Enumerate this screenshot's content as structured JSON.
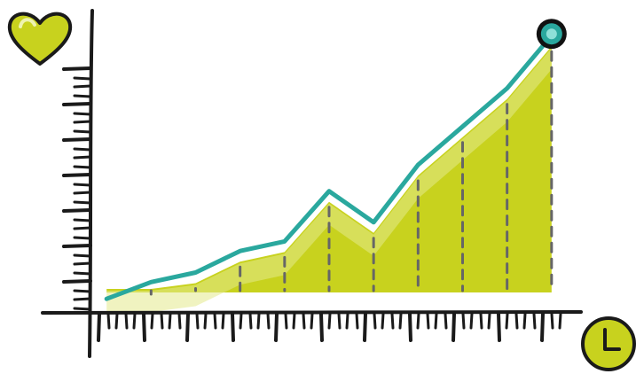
{
  "chart_data": {
    "type": "area",
    "x": [
      1,
      2,
      3,
      4,
      5,
      6,
      7,
      8,
      9,
      10,
      11
    ],
    "series": [
      {
        "values": [
          4,
          11,
          15,
          24,
          28,
          49,
          36,
          60,
          76,
          92,
          114
        ]
      }
    ],
    "ylim": [
      0,
      120
    ],
    "xlim": [
      0,
      12
    ],
    "grid": false,
    "legend": "none",
    "title": "",
    "xlabel": "",
    "ylabel": "",
    "colors": {
      "fill": "#c8d21e",
      "fill_highlight": "#e4ea8c",
      "line": "#2aa89e",
      "axis": "#1a1a1a",
      "drop_line": "#666666",
      "marker": "#2aa89e"
    },
    "icons": {
      "y_axis": "heart-icon",
      "x_axis": "clock-icon",
      "end_marker": "endpoint-dot-icon"
    }
  }
}
